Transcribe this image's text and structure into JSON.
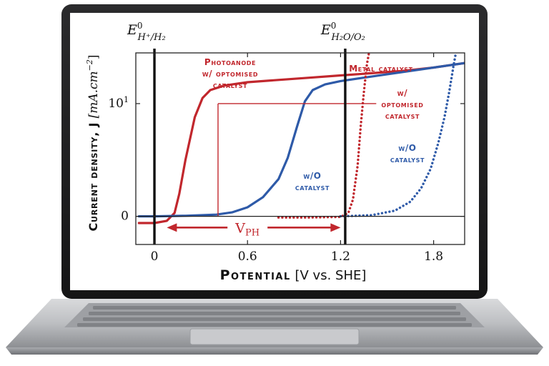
{
  "chart_data": {
    "type": "line",
    "xlabel_main": "Potential",
    "xlabel_unit": "[V vs. SHE]",
    "ylabel_main": "Current density, J",
    "ylabel_unit": "[mA.cm",
    "ylabel_exp": "−2",
    "ylabel_close": "]",
    "x_ticks": [
      "0",
      "0.6",
      "1.2",
      "1.8"
    ],
    "x_tick_values": [
      0,
      0.6,
      1.2,
      1.8
    ],
    "y_ticks": [
      {
        "label": "0",
        "value": 0
      },
      {
        "label": "10",
        "sup": "1",
        "value": 10
      }
    ],
    "xlim": [
      -0.12,
      2.0
    ],
    "ylim": [
      -2.5,
      14.5
    ],
    "ref_lines": [
      {
        "x": 0.0,
        "label_main": "E",
        "label_sup": "0",
        "label_sub": "H⁺/H₂"
      },
      {
        "x": 1.23,
        "label_main": "E",
        "label_sup": "0",
        "label_sub": "H₂O/O₂"
      }
    ],
    "series": [
      {
        "name_lines": [
          "Photoanode",
          "w/ optomised",
          "catalyst"
        ],
        "color": "#c1272d",
        "dash": "solid",
        "x": [
          -0.1,
          0.0,
          0.08,
          0.13,
          0.16,
          0.2,
          0.26,
          0.31,
          0.36,
          0.45,
          0.6,
          0.8,
          1.0,
          1.2,
          1.4,
          1.6,
          1.8,
          2.0
        ],
        "y": [
          -0.6,
          -0.6,
          -0.4,
          0.3,
          2.0,
          5.0,
          8.8,
          10.5,
          11.2,
          11.6,
          11.9,
          12.1,
          12.3,
          12.5,
          12.7,
          12.9,
          13.2,
          13.6
        ]
      },
      {
        "name_lines": [
          "w/O",
          "catalyst"
        ],
        "color": "#2e5aa8",
        "dash": "solid",
        "x": [
          -0.1,
          0.0,
          0.2,
          0.4,
          0.5,
          0.6,
          0.7,
          0.8,
          0.86,
          0.92,
          0.97,
          1.02,
          1.1,
          1.2,
          1.4,
          1.6,
          1.8,
          2.0
        ],
        "y": [
          0.0,
          0.0,
          0.05,
          0.15,
          0.35,
          0.8,
          1.7,
          3.3,
          5.2,
          8.0,
          10.2,
          11.2,
          11.7,
          12.0,
          12.4,
          12.8,
          13.2,
          13.6
        ]
      },
      {
        "name_lines": [
          "Metal catalyst"
        ],
        "color": "#c1272d",
        "dash": "dotted",
        "x": [
          0.8,
          1.0,
          1.2,
          1.25,
          1.28,
          1.31,
          1.33,
          1.35,
          1.37,
          1.39
        ],
        "y": [
          -0.1,
          -0.1,
          -0.05,
          0.3,
          1.5,
          4.5,
          8.0,
          11.0,
          13.5,
          15.0
        ]
      },
      {
        "name_lines": [
          "w/",
          "optomised",
          "catalyst"
        ],
        "color": "#c1272d",
        "dash": "none",
        "label_only": true
      },
      {
        "name_lines": [
          "w/O",
          "catalyst"
        ],
        "color": "#2e5aa8",
        "dash": "dotted",
        "x": [
          1.2,
          1.4,
          1.55,
          1.65,
          1.72,
          1.78,
          1.83,
          1.87,
          1.9,
          1.93,
          1.95
        ],
        "y": [
          0.0,
          0.1,
          0.5,
          1.3,
          2.5,
          4.2,
          6.5,
          8.8,
          11.0,
          13.5,
          15.0
        ]
      }
    ],
    "annotations": [
      {
        "text_main": "V",
        "text_sub": "PH",
        "color": "#c1272d"
      }
    ],
    "grid": false
  }
}
